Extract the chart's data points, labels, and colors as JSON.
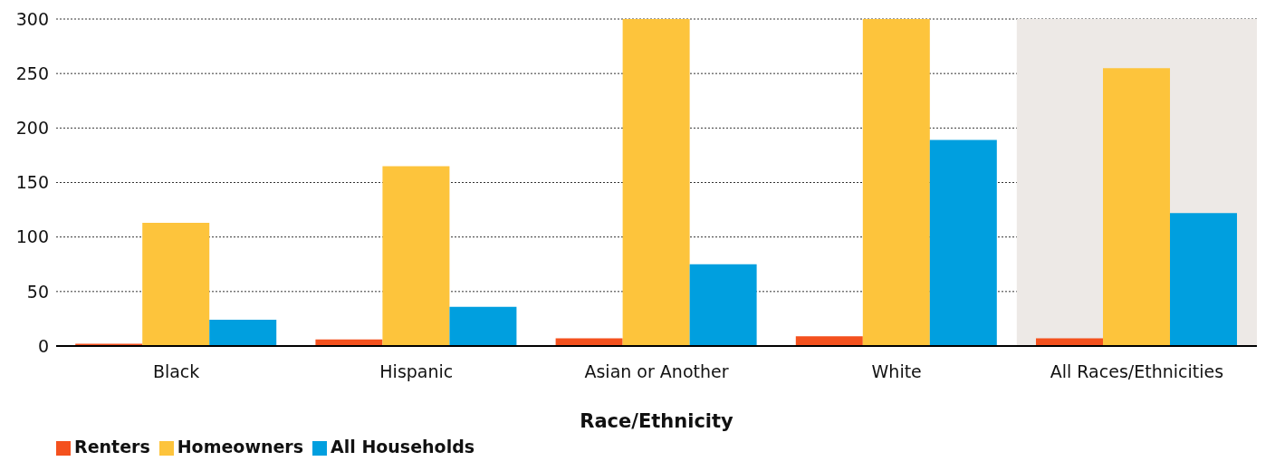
{
  "chart_data": {
    "type": "bar",
    "xlabel": "Race/Ethnicity",
    "categories": [
      "Black",
      "Hispanic",
      "Asian or Another",
      "White",
      "All Races/Ethnicities"
    ],
    "series": [
      {
        "name": "Renters",
        "color": "#f4511e",
        "values": [
          2,
          6,
          7,
          9,
          7
        ]
      },
      {
        "name": "Homeowners",
        "color": "#fdc43c",
        "values": [
          113,
          165,
          300,
          300,
          255
        ]
      },
      {
        "name": "All Households",
        "color": "#009fdf",
        "values": [
          24,
          36,
          75,
          189,
          122
        ]
      }
    ],
    "ylim": [
      0,
      300
    ],
    "yticks": [
      0,
      50,
      100,
      150,
      200,
      250,
      300
    ],
    "grid": "y",
    "legend": "bottom left",
    "bands": [
      {
        "axis": "x",
        "from": "All Races/Ethnicities",
        "to": "All Races/Ethnicities",
        "color": "#ede9e6"
      }
    ]
  }
}
